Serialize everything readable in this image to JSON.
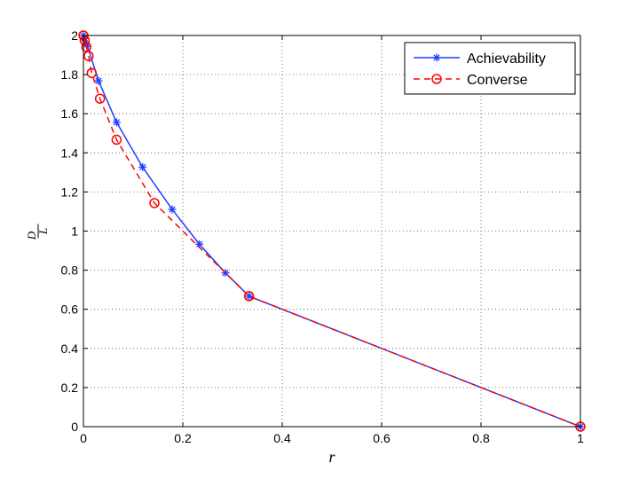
{
  "chart_data": {
    "type": "line",
    "title": "",
    "xlabel": "r",
    "ylabel_num": "D",
    "ylabel_den": "L",
    "xlim": [
      0,
      1
    ],
    "ylim": [
      0,
      2
    ],
    "xticks": [
      0,
      0.2,
      0.4,
      0.6,
      0.8,
      1
    ],
    "yticks": [
      0,
      0.2,
      0.4,
      0.6,
      0.8,
      1,
      1.2,
      1.4,
      1.6,
      1.8,
      2
    ],
    "xtick_labels": [
      "0",
      "0.2",
      "0.4",
      "0.6",
      "0.8",
      "1"
    ],
    "ytick_labels": [
      "0",
      "0.2",
      "0.4",
      "0.6",
      "0.8",
      "1",
      "1.2",
      "1.4",
      "1.6",
      "1.8",
      "2"
    ],
    "grid": true,
    "legend_position": "top-right",
    "series": [
      {
        "name": "Achievability",
        "color": "#1f3fff",
        "line_style": "solid",
        "marker": "asterisk",
        "x": [
          0,
          0.0025,
          0.0071,
          0.0303,
          0.0667,
          0.119,
          0.1786,
          0.2333,
          0.2857,
          0.3333,
          1
        ],
        "y": [
          2,
          1.985,
          1.955,
          1.768,
          1.556,
          1.327,
          1.111,
          0.933,
          0.786,
          0.667,
          0
        ]
      },
      {
        "name": "Converse",
        "color": "#ff0000",
        "line_style": "dashed",
        "marker": "circle",
        "x": [
          0,
          0.0025,
          0.0059,
          0.0105,
          0.0167,
          0.0333,
          0.0667,
          0.1429,
          0.3333,
          1
        ],
        "y": [
          2,
          1.975,
          1.941,
          1.895,
          1.808,
          1.677,
          1.467,
          1.143,
          0.667,
          0
        ]
      }
    ]
  }
}
